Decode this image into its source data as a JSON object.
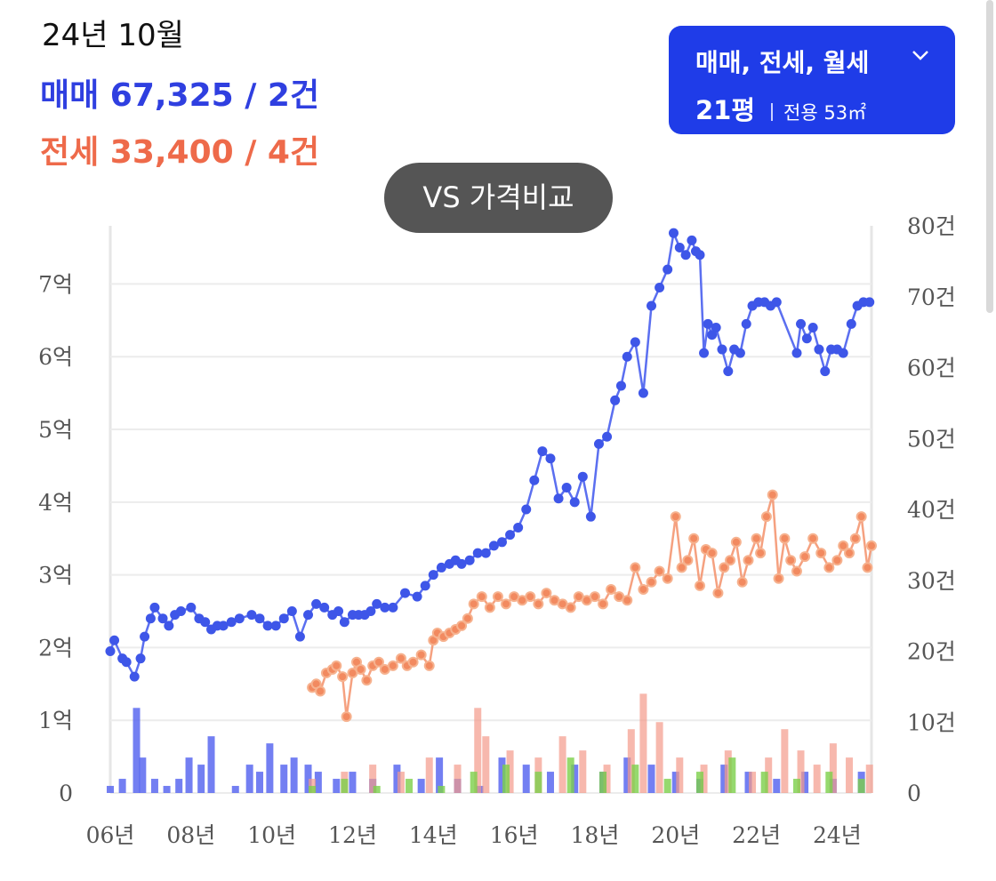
{
  "header": {
    "period": "24년 10월",
    "sale_summary": "매매 67,325 / 2건",
    "jeonse_summary": "전세 33,400 / 4건"
  },
  "filter": {
    "types_label": "매매, 전세, 월세",
    "area_pyeong": "21평",
    "area_exclusive": "전용 53㎡"
  },
  "compare_button": "VS 가격비교",
  "colors": {
    "sale": "#5b6ff0",
    "jeonse": "#f28a60",
    "sale_bar": "#5a68f0",
    "jeonse_bar": "#f39a8a",
    "wolse_bar": "#7ccf4a",
    "filter_bg": "#1f3ce8"
  },
  "icons": {
    "dropdown": "chevron-down-icon"
  },
  "chart_data": {
    "type": "line",
    "x_ticks": [
      "06년",
      "08년",
      "10년",
      "12년",
      "14년",
      "16년",
      "18년",
      "20년",
      "22년",
      "24년"
    ],
    "y_left_ticks": [
      "0",
      "1억",
      "2억",
      "3억",
      "4억",
      "5억",
      "6억",
      "7억"
    ],
    "y_left_range": [
      0,
      7.8
    ],
    "y_right_ticks": [
      "0",
      "10건",
      "20건",
      "30건",
      "40건",
      "50건",
      "60건",
      "70건",
      "80건"
    ],
    "y_right_range": [
      0,
      80
    ],
    "grid": true,
    "series": [
      {
        "name": "매매",
        "x": [
          2006.0,
          2006.1,
          2006.3,
          2006.4,
          2006.6,
          2006.75,
          2006.85,
          2007.0,
          2007.1,
          2007.3,
          2007.45,
          2007.6,
          2007.75,
          2008.0,
          2008.2,
          2008.35,
          2008.5,
          2008.65,
          2008.8,
          2009.0,
          2009.2,
          2009.5,
          2009.7,
          2009.9,
          2010.1,
          2010.3,
          2010.5,
          2010.7,
          2010.9,
          2011.1,
          2011.3,
          2011.5,
          2011.65,
          2011.8,
          2012.0,
          2012.15,
          2012.3,
          2012.45,
          2012.6,
          2012.8,
          2013.0,
          2013.3,
          2013.6,
          2013.8,
          2014.0,
          2014.2,
          2014.4,
          2014.55,
          2014.7,
          2014.9,
          2015.1,
          2015.3,
          2015.5,
          2015.7,
          2015.9,
          2016.1,
          2016.3,
          2016.5,
          2016.7,
          2016.9,
          2017.1,
          2017.3,
          2017.5,
          2017.7,
          2017.9,
          2018.1,
          2018.3,
          2018.5,
          2018.65,
          2018.8,
          2019.0,
          2019.2,
          2019.4,
          2019.6,
          2019.8,
          2019.95,
          2020.1,
          2020.25,
          2020.4,
          2020.5,
          2020.6,
          2020.7,
          2020.8,
          2020.9,
          2021.0,
          2021.15,
          2021.3,
          2021.45,
          2021.6,
          2021.75,
          2021.9,
          2022.05,
          2022.2,
          2022.35,
          2022.5,
          2023.0,
          2023.1,
          2023.25,
          2023.4,
          2023.55,
          2023.7,
          2023.85,
          2024.0,
          2024.15,
          2024.35,
          2024.5,
          2024.65,
          2024.8
        ],
        "y": [
          1.95,
          2.1,
          1.85,
          1.8,
          1.6,
          1.85,
          2.15,
          2.4,
          2.55,
          2.4,
          2.3,
          2.45,
          2.5,
          2.55,
          2.4,
          2.35,
          2.25,
          2.3,
          2.3,
          2.35,
          2.4,
          2.45,
          2.4,
          2.3,
          2.3,
          2.4,
          2.5,
          2.15,
          2.45,
          2.6,
          2.55,
          2.45,
          2.5,
          2.35,
          2.45,
          2.45,
          2.45,
          2.5,
          2.6,
          2.55,
          2.55,
          2.75,
          2.7,
          2.85,
          3.0,
          3.1,
          3.15,
          3.2,
          3.15,
          3.2,
          3.3,
          3.3,
          3.4,
          3.45,
          3.55,
          3.65,
          3.9,
          4.3,
          4.7,
          4.6,
          4.05,
          4.2,
          4.0,
          4.35,
          3.8,
          4.8,
          4.9,
          5.4,
          5.6,
          6.0,
          6.2,
          5.5,
          6.7,
          6.95,
          7.2,
          7.7,
          7.5,
          7.4,
          7.6,
          7.45,
          7.4,
          6.05,
          6.45,
          6.3,
          6.4,
          6.1,
          5.8,
          6.1,
          6.05,
          6.45,
          6.7,
          6.75,
          6.75,
          6.7,
          6.75,
          6.05,
          6.45,
          6.25,
          6.4,
          6.1,
          5.8,
          6.1,
          6.1,
          6.05,
          6.45,
          6.7,
          6.75,
          6.75
        ]
      },
      {
        "name": "전세",
        "x": [
          2011.0,
          2011.1,
          2011.2,
          2011.35,
          2011.5,
          2011.6,
          2011.75,
          2011.85,
          2012.0,
          2012.1,
          2012.2,
          2012.35,
          2012.5,
          2012.65,
          2012.8,
          2013.0,
          2013.2,
          2013.35,
          2013.5,
          2013.7,
          2013.9,
          2014.0,
          2014.1,
          2014.25,
          2014.4,
          2014.55,
          2014.7,
          2014.85,
          2015.0,
          2015.2,
          2015.4,
          2015.6,
          2015.8,
          2016.0,
          2016.2,
          2016.4,
          2016.6,
          2016.8,
          2017.0,
          2017.2,
          2017.4,
          2017.6,
          2017.8,
          2018.0,
          2018.2,
          2018.4,
          2018.6,
          2018.8,
          2019.0,
          2019.2,
          2019.4,
          2019.6,
          2019.8,
          2020.0,
          2020.15,
          2020.3,
          2020.45,
          2020.6,
          2020.75,
          2020.9,
          2021.05,
          2021.2,
          2021.35,
          2021.5,
          2021.65,
          2021.8,
          2022.0,
          2022.1,
          2022.25,
          2022.4,
          2022.55,
          2022.7,
          2022.85,
          2023.0,
          2023.2,
          2023.4,
          2023.6,
          2023.8,
          2024.0,
          2024.15,
          2024.3,
          2024.45,
          2024.6,
          2024.75,
          2024.85
        ],
        "y": [
          1.45,
          1.5,
          1.4,
          1.65,
          1.7,
          1.75,
          1.6,
          1.05,
          1.65,
          1.8,
          1.7,
          1.55,
          1.75,
          1.8,
          1.7,
          1.75,
          1.85,
          1.75,
          1.8,
          1.9,
          1.75,
          2.1,
          2.2,
          2.15,
          2.2,
          2.25,
          2.3,
          2.4,
          2.6,
          2.7,
          2.55,
          2.7,
          2.6,
          2.7,
          2.65,
          2.7,
          2.6,
          2.75,
          2.65,
          2.6,
          2.55,
          2.7,
          2.65,
          2.7,
          2.6,
          2.8,
          2.7,
          2.65,
          3.1,
          2.8,
          2.9,
          3.05,
          2.95,
          3.8,
          3.1,
          3.2,
          3.5,
          2.85,
          3.35,
          3.3,
          2.75,
          3.1,
          3.2,
          3.45,
          2.9,
          3.2,
          3.5,
          3.3,
          3.8,
          4.1,
          2.95,
          3.5,
          3.2,
          3.05,
          3.25,
          3.5,
          3.3,
          3.1,
          3.2,
          3.4,
          3.3,
          3.5,
          3.8,
          3.1,
          3.4
        ]
      }
    ],
    "volume_series": [
      {
        "name": "매매",
        "x": [
          2006.0,
          2006.3,
          2006.65,
          2006.8,
          2007.1,
          2007.4,
          2007.7,
          2007.95,
          2008.25,
          2008.5,
          2009.1,
          2009.45,
          2009.7,
          2009.95,
          2010.3,
          2010.55,
          2010.9,
          2011.15,
          2011.6,
          2012.0,
          2012.5,
          2013.1,
          2013.7,
          2014.15,
          2014.6,
          2015.15,
          2015.7,
          2016.3,
          2016.9,
          2017.5,
          2018.2,
          2018.8,
          2019.4,
          2020.0,
          2020.6,
          2021.2,
          2021.8,
          2022.5,
          2023.2,
          2023.9,
          2024.6
        ],
        "counts": [
          1,
          2,
          12,
          5,
          2,
          1,
          2,
          5,
          4,
          8,
          1,
          4,
          3,
          7,
          4,
          5,
          4,
          3,
          2,
          3,
          2,
          4,
          2,
          5,
          2,
          1,
          5,
          4,
          3,
          4,
          3,
          5,
          4,
          3,
          2,
          4,
          3,
          2,
          3,
          2,
          3
        ]
      },
      {
        "name": "전세",
        "x": [
          2011.0,
          2011.8,
          2012.5,
          2013.2,
          2013.9,
          2014.6,
          2015.1,
          2015.3,
          2015.9,
          2016.6,
          2017.2,
          2017.7,
          2018.3,
          2018.9,
          2019.2,
          2019.6,
          2020.1,
          2020.7,
          2021.3,
          2021.9,
          2022.3,
          2022.7,
          2023.1,
          2023.5,
          2023.9,
          2024.3,
          2024.8
        ],
        "counts": [
          2,
          3,
          4,
          3,
          5,
          4,
          12,
          8,
          6,
          5,
          8,
          6,
          4,
          9,
          14,
          10,
          5,
          4,
          6,
          3,
          5,
          9,
          6,
          4,
          7,
          5,
          4
        ]
      },
      {
        "name": "월세",
        "x": [
          2011.0,
          2011.8,
          2012.6,
          2013.4,
          2014.2,
          2015.0,
          2015.8,
          2016.6,
          2017.4,
          2018.2,
          2019.0,
          2019.8,
          2020.6,
          2021.4,
          2022.2,
          2023.0,
          2023.8,
          2024.6
        ],
        "counts": [
          1,
          2,
          1,
          2,
          1,
          3,
          4,
          3,
          5,
          3,
          4,
          2,
          3,
          5,
          3,
          2,
          3,
          2
        ]
      }
    ]
  }
}
